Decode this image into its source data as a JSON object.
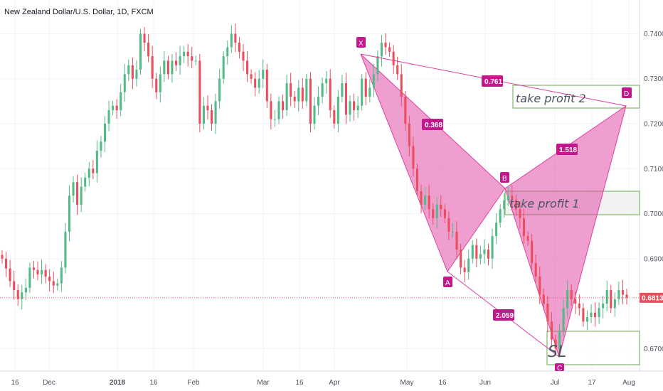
{
  "chart_data": {
    "type": "candlestick",
    "title": "New Zealand Dollar/U.S. Dollar, 1D, FXCM",
    "ylim": [
      0.665,
      0.7475
    ],
    "y_ticks": [
      "0.74000",
      "0.73000",
      "0.72000",
      "0.71000",
      "0.70000",
      "0.69000",
      "0.67000"
    ],
    "x_ticks": [
      "16",
      "Dec",
      "2018",
      "16",
      "Feb",
      "Mar",
      "16",
      "Apr",
      "May",
      "16",
      "Jun",
      "Jul",
      "17",
      "Aug"
    ],
    "current_price": "0.68130",
    "current_value": 0.6813,
    "colors": {
      "up": "#53b987",
      "down": "#eb4d5c",
      "pattern": "#e040a0",
      "zone": "#6aa84f"
    },
    "pattern": {
      "points": [
        {
          "label": "X",
          "value": 0.737
        },
        {
          "label": "A",
          "value": 0.6868
        },
        {
          "label": "B",
          "value": 0.7054
        },
        {
          "label": "C",
          "value": 0.6672
        },
        {
          "label": "D",
          "value": 0.7242
        }
      ],
      "ratios": [
        "0.761",
        "0.368",
        "1.518",
        "2.059"
      ]
    },
    "annotations": {
      "take_profit_2": "take profit 2",
      "take_profit_1": "take profit 1",
      "stop_loss": "SL"
    },
    "closes": [
      0.69,
      0.6878,
      0.685,
      0.683,
      0.681,
      0.6825,
      0.6835,
      0.688,
      0.6875,
      0.6865,
      0.6875,
      0.686,
      0.685,
      0.684,
      0.6845,
      0.688,
      0.696,
      0.704,
      0.707,
      0.702,
      0.706,
      0.708,
      0.71,
      0.709,
      0.714,
      0.716,
      0.72,
      0.723,
      0.724,
      0.723,
      0.727,
      0.731,
      0.733,
      0.73,
      0.732,
      0.74,
      0.738,
      0.735,
      0.73,
      0.727,
      0.731,
      0.734,
      0.731,
      0.734,
      0.733,
      0.735,
      0.736,
      0.735,
      0.734,
      0.734,
      0.72,
      0.724,
      0.723,
      0.72,
      0.725,
      0.73,
      0.735,
      0.737,
      0.74,
      0.738,
      0.736,
      0.734,
      0.731,
      0.73,
      0.728,
      0.73,
      0.732,
      0.725,
      0.721,
      0.721,
      0.725,
      0.723,
      0.729,
      0.726,
      0.725,
      0.728,
      0.725,
      0.73,
      0.72,
      0.724,
      0.726,
      0.729,
      0.73,
      0.723,
      0.72,
      0.726,
      0.729,
      0.722,
      0.725,
      0.723,
      0.724,
      0.73,
      0.726,
      0.728,
      0.731,
      0.735,
      0.738,
      0.737,
      0.736,
      0.733,
      0.731,
      0.726,
      0.72,
      0.715,
      0.71,
      0.705,
      0.702,
      0.704,
      0.701,
      0.699,
      0.702,
      0.701,
      0.699,
      0.696,
      0.696,
      0.692,
      0.688,
      0.687,
      0.69,
      0.693,
      0.69,
      0.691,
      0.692,
      0.69,
      0.695,
      0.698,
      0.701,
      0.703,
      0.704,
      0.703,
      0.701,
      0.699,
      0.695,
      0.694,
      0.689,
      0.686,
      0.682,
      0.68,
      0.676,
      0.672,
      0.67,
      0.674,
      0.679,
      0.683,
      0.681,
      0.68,
      0.679,
      0.676,
      0.677,
      0.678,
      0.677,
      0.679,
      0.68,
      0.683,
      0.679,
      0.681,
      0.683,
      0.682,
      0.6813
    ]
  }
}
